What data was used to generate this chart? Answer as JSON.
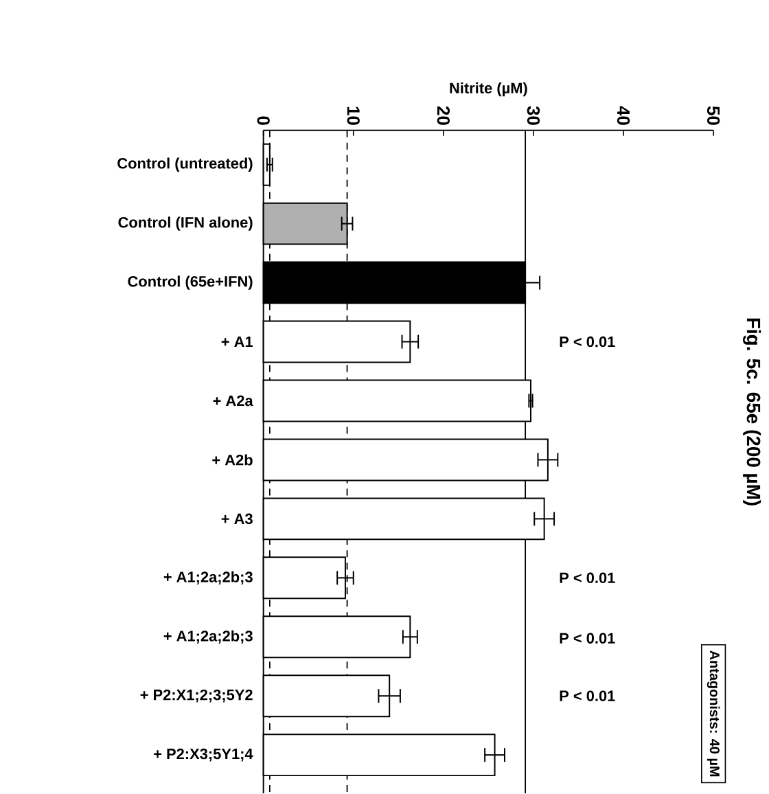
{
  "chart_data": {
    "type": "bar",
    "orientation": "horizontal",
    "title": "Fig. 5c. 65e (200 µM)",
    "xlabel": "Nitrite (µM)",
    "categories": [
      "Control (untreated)",
      "Control (IFN alone)",
      "Control (65e+IFN)",
      "+ A1",
      "+ A2a",
      "+ A2b",
      "+ A3",
      "+ A1;2a;2b;3",
      "+ A1;2a;2b;3",
      "+ P2:X1;2;3;5Y2",
      "+ P2:X3;5Y1;4"
    ],
    "values": [
      0.7,
      9.3,
      29.1,
      16.3,
      29.7,
      31.6,
      31.2,
      9.1,
      16.3,
      14.0,
      25.7
    ],
    "errors": [
      0.3,
      0.6,
      1.6,
      0.9,
      0.2,
      1.1,
      1.1,
      0.9,
      0.8,
      1.2,
      1.1
    ],
    "colors": [
      "#ffffff",
      "#b0b0b0",
      "#000000",
      "#ffffff",
      "#ffffff",
      "#ffffff",
      "#ffffff",
      "#ffffff",
      "#ffffff",
      "#ffffff",
      "#ffffff"
    ],
    "xlim": [
      0,
      50
    ],
    "xticks": [
      0,
      10,
      20,
      30,
      40,
      50
    ],
    "ref_lines": [
      {
        "axis": "x",
        "value": 0.7,
        "line_style": "dashed"
      },
      {
        "axis": "x",
        "value": 9.3,
        "line_style": "dashed"
      },
      {
        "axis": "x",
        "value": 29.1,
        "line_style": "solid"
      }
    ],
    "annotations": [
      "P < 0.01",
      "P < 0.01",
      "P < 0.01",
      "P < 0.01",
      "Antagonists: 40 µM"
    ]
  }
}
